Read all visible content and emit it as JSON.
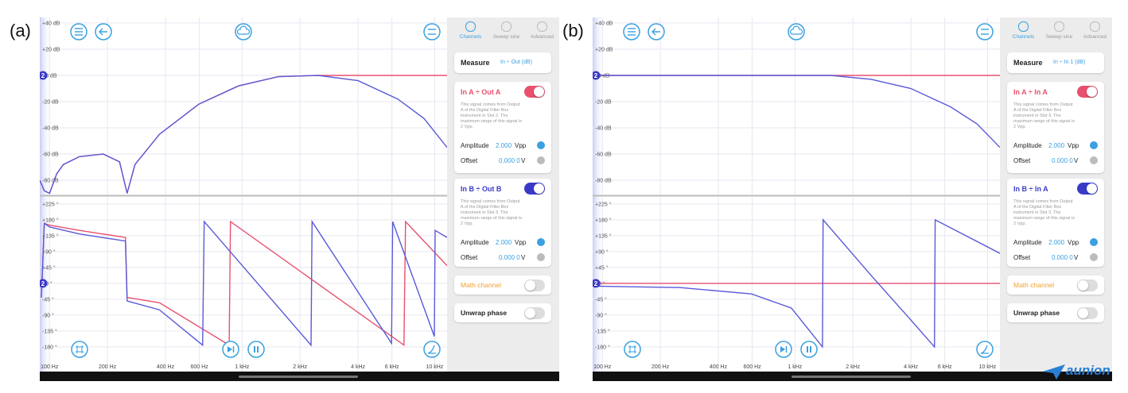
{
  "channel_marker": "2",
  "logo": "aunion",
  "panels": [
    {
      "label": "(a)",
      "xlim": [
        89,
        11600
      ],
      "xticks": [
        {
          "value": 100,
          "label": "100 Hz"
        },
        {
          "value": 200,
          "label": "200 Hz"
        },
        {
          "value": 400,
          "label": "400 Hz"
        },
        {
          "value": 600,
          "label": "600 Hz"
        },
        {
          "value": 1000,
          "label": "1 kHz"
        },
        {
          "value": 2000,
          "label": "2 kHz"
        },
        {
          "value": 4000,
          "label": "4 kHz"
        },
        {
          "value": 6000,
          "label": "6 kHz"
        },
        {
          "value": 10000,
          "label": "10 kHz"
        }
      ],
      "magnitude": {
        "ylim": [
          -90.9,
          44.2
        ],
        "yticks": [
          {
            "value": 40,
            "label": "+40 dB"
          },
          {
            "value": 20,
            "label": "+20 dB"
          },
          {
            "value": 0,
            "label": "+0 dB"
          },
          {
            "value": -20,
            "label": "-20 dB"
          },
          {
            "value": -40,
            "label": "-40 dB"
          },
          {
            "value": -60,
            "label": "-60 dB"
          },
          {
            "value": -80,
            "label": "-80 dB"
          }
        ],
        "series": [
          {
            "color": "#e8506e",
            "x": [
              89,
              94,
              100,
              109,
              118,
              143,
              190,
              231,
              253,
              278,
              372,
              595,
              958,
              1540,
              2490,
              4000,
              6430,
              8820,
              11600
            ],
            "values": [
              -80,
              -88,
              -90,
              -75,
              -68,
              -62,
              -60,
              -66,
              -90,
              -68,
              -45,
              -22,
              -8,
              -1,
              0,
              0,
              0,
              0,
              0
            ]
          },
          {
            "color": "#5a5ad8",
            "x": [
              89,
              94,
              100,
              109,
              118,
              143,
              190,
              231,
              253,
              278,
              372,
              595,
              958,
              1540,
              2490,
              4000,
              6430,
              8820,
              11600
            ],
            "values": [
              -80,
              -88,
              -90,
              -75,
              -68,
              -62,
              -60,
              -66,
              -90,
              -68,
              -45,
              -22,
              -8,
              -1,
              0,
              -4,
              -18,
              -33,
              -55
            ]
          }
        ]
      },
      "phase": {
        "ylim": [
          -250,
          245
        ],
        "yticks": [
          {
            "value": 225,
            "label": "+225 °"
          },
          {
            "value": 180,
            "label": "+180 °"
          },
          {
            "value": 135,
            "label": "+135 °"
          },
          {
            "value": 90,
            "label": "+90 °"
          },
          {
            "value": 45,
            "label": "+45 °"
          },
          {
            "value": 0,
            "label": "+0 °"
          },
          {
            "value": -45,
            "label": "-45 °"
          },
          {
            "value": -90,
            "label": "-90 °"
          },
          {
            "value": -135,
            "label": "-135 °"
          },
          {
            "value": -180,
            "label": "-180 °"
          }
        ],
        "series": [
          {
            "color": "#e8506e",
            "x": [
              90.7,
              94,
              100,
              143,
              248,
              253,
              372,
              857,
              870,
              6930,
              7060,
              11600
            ],
            "values": [
              -40,
              170,
              165,
              150,
              130,
              -40,
              -55,
              -175,
              175,
              -175,
              175,
              50
            ]
          },
          {
            "color": "#5a5ad8",
            "x": [
              90.7,
              94,
              100,
              143,
              248,
              253,
              372,
              624,
              636,
              2280,
              2310,
              5970,
              6050,
              9960,
              10060,
              11600
            ],
            "values": [
              -40,
              170,
              160,
              140,
              120,
              -50,
              -75,
              -175,
              175,
              -175,
              175,
              -170,
              175,
              -150,
              150,
              130
            ]
          }
        ]
      },
      "sidebar": {
        "tabs": [
          "Channels",
          "Sweep sine",
          "Advanced"
        ],
        "measure_label": "Measure",
        "measure_value": "In ÷ Out (dB)",
        "channels": [
          {
            "title": "In A ÷ Out A",
            "color": "#e8506e",
            "on": true,
            "description": "This signal comes from Output A of the Digital Filter Box instrument in Slot 2. The maximum range of this signal is 2 Vpp.",
            "amplitude_label": "Amplitude",
            "amplitude_value": "2.000",
            "amplitude_unit": "Vpp",
            "offset_label": "Offset",
            "offset_value": "0.000 0",
            "offset_unit": "V"
          },
          {
            "title": "In B ÷ Out B",
            "color": "#3a3ac8",
            "on": true,
            "description": "This signal comes from Output A of the Digital Filter Box instrument in Slot 3. The maximum range of this signal is 2 Vpp.",
            "amplitude_label": "Amplitude",
            "amplitude_value": "2.000",
            "amplitude_unit": "Vpp",
            "offset_label": "Offset",
            "offset_value": "0.000 0",
            "offset_unit": "V"
          }
        ],
        "math_channel": "Math channel",
        "unwrap_phase": "Unwrap phase"
      }
    },
    {
      "label": "(b)",
      "xlim": [
        89,
        11600
      ],
      "xticks": [
        {
          "value": 100,
          "label": "100 Hz"
        },
        {
          "value": 200,
          "label": "200 Hz"
        },
        {
          "value": 400,
          "label": "400 Hz"
        },
        {
          "value": 600,
          "label": "600 Hz"
        },
        {
          "value": 1000,
          "label": "1 kHz"
        },
        {
          "value": 2000,
          "label": "2 kHz"
        },
        {
          "value": 4000,
          "label": "4 kHz"
        },
        {
          "value": 6000,
          "label": "6 kHz"
        },
        {
          "value": 10000,
          "label": "10 kHz"
        }
      ],
      "magnitude": {
        "ylim": [
          -90.9,
          44.2
        ],
        "yticks": [
          {
            "value": 40,
            "label": "+40 dB"
          },
          {
            "value": 20,
            "label": "+20 dB"
          },
          {
            "value": 0,
            "label": "+0 dB"
          },
          {
            "value": -20,
            "label": "-20 dB"
          },
          {
            "value": -40,
            "label": "-40 dB"
          },
          {
            "value": -60,
            "label": "-60 dB"
          },
          {
            "value": -80,
            "label": "-80 dB"
          }
        ],
        "series": [
          {
            "color": "#e8506e",
            "x": [
              89,
              11600
            ],
            "values": [
              0,
              0
            ]
          },
          {
            "color": "#5a5ad8",
            "x": [
              89,
              253,
              958,
              1540,
              2490,
              4000,
              6430,
              8820,
              11600
            ],
            "values": [
              0,
              0,
              0,
              0,
              -3,
              -10,
              -24,
              -37,
              -55
            ]
          }
        ]
      },
      "phase": {
        "ylim": [
          -250,
          245
        ],
        "yticks": [
          {
            "value": 225,
            "label": "+225 °"
          },
          {
            "value": 180,
            "label": "+180 °"
          },
          {
            "value": 135,
            "label": "+135 °"
          },
          {
            "value": 90,
            "label": "+90 °"
          },
          {
            "value": 45,
            "label": "+45 °"
          },
          {
            "value": 0,
            "label": "+0 °"
          },
          {
            "value": -45,
            "label": "-45 °"
          },
          {
            "value": -90,
            "label": "-90 °"
          },
          {
            "value": -135,
            "label": "-135 °"
          },
          {
            "value": -180,
            "label": "-180 °"
          }
        ],
        "series": [
          {
            "color": "#e8506e",
            "x": [
              89,
              11600
            ],
            "values": [
              0,
              0
            ]
          },
          {
            "color": "#5a5ad8",
            "x": [
              89,
              253,
              595,
              958,
              1390,
              1400,
              2490,
              4000,
              5300,
              5350,
              11600
            ],
            "values": [
              -8,
              -12,
              -30,
              -70,
              -180,
              180,
              22,
              -104,
              -180,
              180,
              85
            ]
          }
        ]
      },
      "sidebar": {
        "tabs": [
          "Channels",
          "Sweep sine",
          "Advanced"
        ],
        "measure_label": "Measure",
        "measure_value": "In ÷ In 1 (dB)",
        "channels": [
          {
            "title": "In A ÷ In A",
            "color": "#e8506e",
            "on": true,
            "description": "This signal comes from Output A of the Digital Filter Box instrument in Slot 3. The maximum range of this signal is 2 Vpp.",
            "amplitude_label": "Amplitude",
            "amplitude_value": "2.000",
            "amplitude_unit": "Vpp",
            "offset_label": "Offset",
            "offset_value": "0.000 0",
            "offset_unit": "V"
          },
          {
            "title": "In B ÷ In A",
            "color": "#3a3ac8",
            "on": true,
            "description": "This signal comes from Output A of the Digital Filter Box instrument in Slot 3. The maximum range of this signal is 2 Vpp.",
            "amplitude_label": "Amplitude",
            "amplitude_value": "2.000",
            "amplitude_unit": "Vpp",
            "offset_label": "Offset",
            "offset_value": "0.000 0",
            "offset_unit": "V"
          }
        ],
        "math_channel": "Math channel",
        "unwrap_phase": "Unwrap phase"
      }
    }
  ]
}
